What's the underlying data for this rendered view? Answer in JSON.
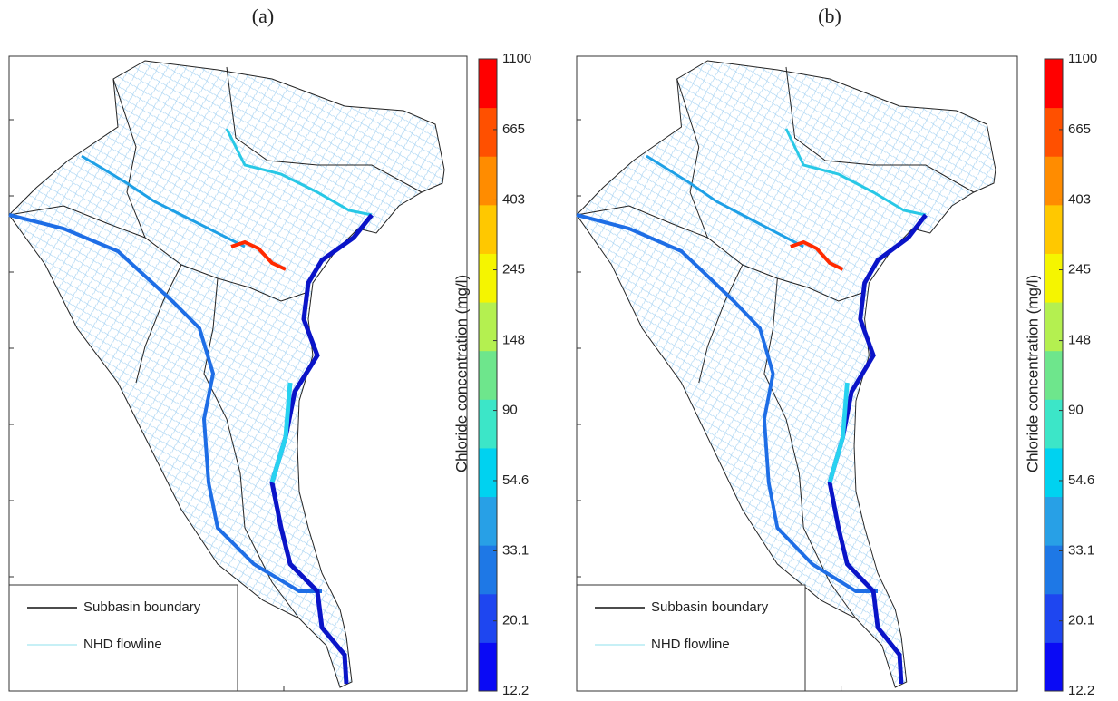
{
  "panels": [
    {
      "label": "(a)",
      "legend": [
        "Subbasin boundary",
        "NHD flowline"
      ]
    },
    {
      "label": "(b)",
      "legend": [
        "Subbasin boundary",
        "NHD flowline"
      ]
    }
  ],
  "colorbar": {
    "label": "Chloride concentration (mg/l)",
    "lim": [
      12.2,
      1100
    ],
    "log": true,
    "ticks": [
      12.2,
      20.1,
      33.1,
      54.6,
      90,
      148,
      245,
      403,
      665,
      1100
    ],
    "colors": [
      "#0a0af5",
      "#1e46f0",
      "#1e78e6",
      "#28a0e6",
      "#00d2f0",
      "#3ce6c8",
      "#6ee68c",
      "#b4f050",
      "#f5f500",
      "#ffc800",
      "#ff8c00",
      "#ff5000",
      "#ff0000"
    ]
  }
}
